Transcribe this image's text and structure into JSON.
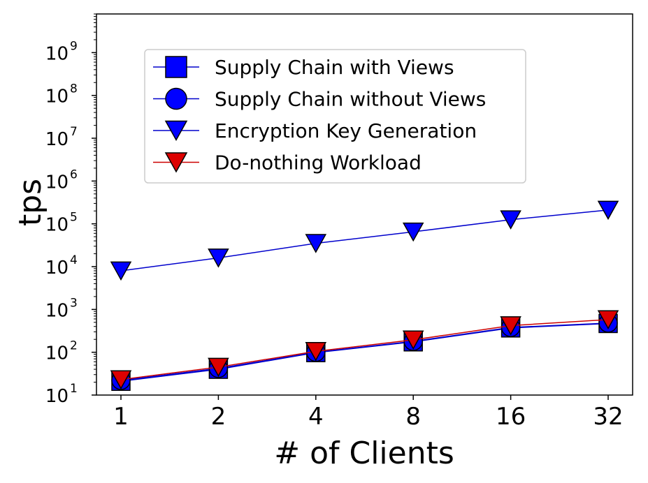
{
  "chart_data": {
    "type": "line",
    "title": "",
    "xlabel": "# of Clients",
    "ylabel": "tps",
    "x_scale": "log2",
    "y_scale": "log10",
    "categories": [
      "1",
      "2",
      "4",
      "8",
      "16",
      "32"
    ],
    "x": [
      1,
      2,
      4,
      8,
      16,
      32
    ],
    "ylim": [
      10,
      8000000000
    ],
    "y_ticks": [
      {
        "value": 10,
        "base": "10",
        "exp": "1"
      },
      {
        "value": 100,
        "base": "10",
        "exp": "2"
      },
      {
        "value": 1000,
        "base": "10",
        "exp": "3"
      },
      {
        "value": 10000,
        "base": "10",
        "exp": "4"
      },
      {
        "value": 100000,
        "base": "10",
        "exp": "5"
      },
      {
        "value": 1000000,
        "base": "10",
        "exp": "6"
      },
      {
        "value": 10000000,
        "base": "10",
        "exp": "7"
      },
      {
        "value": 100000000,
        "base": "10",
        "exp": "8"
      },
      {
        "value": 1000000000,
        "base": "10",
        "exp": "9"
      }
    ],
    "grid": false,
    "legend_position": "upper-left",
    "series": [
      {
        "name": "Supply Chain with Views",
        "marker": "square",
        "line_color": "#0000cc",
        "marker_color": "#0000ff",
        "values": [
          21,
          40,
          98,
          175,
          370,
          470
        ]
      },
      {
        "name": "Supply Chain without Views",
        "marker": "circle",
        "line_color": "#0000cc",
        "marker_color": "#0000ff",
        "values": [
          22,
          42,
          100,
          180,
          380,
          480
        ]
      },
      {
        "name": "Encryption Key Generation",
        "marker": "triangle-down",
        "line_color": "#0000cc",
        "marker_color": "#0000ff",
        "values": [
          8000,
          16000,
          35000,
          65000,
          125000,
          210000
        ]
      },
      {
        "name": "Do-nothing Workload",
        "marker": "triangle-down",
        "line_color": "#cc0000",
        "marker_color": "#dd0000",
        "values": [
          23,
          45,
          105,
          195,
          420,
          580
        ]
      }
    ]
  }
}
